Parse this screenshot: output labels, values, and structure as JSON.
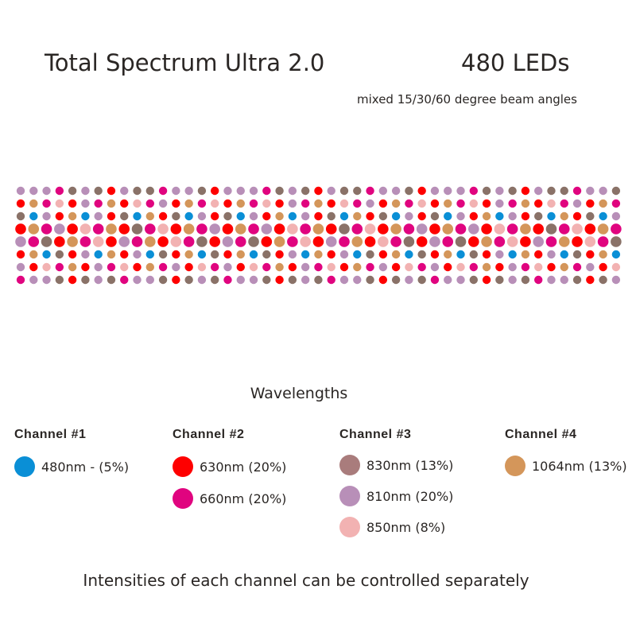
{
  "title": "Total Spectrum Ultra 2.0",
  "led_count": "480 LEDs",
  "beam_note": "mixed 15/30/60 degree beam angles",
  "wavelengths_heading": "Wavelengths",
  "colors": {
    "C": "#0a8fd6",
    "R": "#fe0000",
    "P": "#e0047f",
    "B": "#8a7268",
    "L": "#b88fb8",
    "K": "#f2b2b2",
    "O": "#d4965a"
  },
  "led_pattern": [
    "LLLPBLBRLBBPLLBR",
    "ROPKRLPORKPLROPK",
    "BCLROCLRBCORBCLR",
    "ROPLRKPORBPKROPL",
    "LPBROPKRLPORKPBR",
    "ROCBRLCORLCBROCB",
    "LRKPORLPKROPLRKP",
    "PLLBRBLBPLLBRBLB"
  ],
  "channels": [
    {
      "name": "Channel #1",
      "items": [
        {
          "label": "480nm - (5%)",
          "color": "#0a8fd6"
        }
      ]
    },
    {
      "name": "Channel #2",
      "items": [
        {
          "label": "630nm (20%)",
          "color": "#fe0000"
        },
        {
          "label": "660nm (20%)",
          "color": "#e0047f"
        }
      ]
    },
    {
      "name": "Channel #3",
      "items": [
        {
          "label": "830nm (13%)",
          "color": "#a97c7c"
        },
        {
          "label": "810nm (20%)",
          "color": "#b88fb8"
        },
        {
          "label": "850nm (8%)",
          "color": "#f2b2b2"
        }
      ]
    },
    {
      "name": "Channel #4",
      "items": [
        {
          "label": "1064nm (13%)",
          "color": "#d4965a"
        }
      ]
    }
  ],
  "footer": "Intensities of each channel can be controlled separately"
}
